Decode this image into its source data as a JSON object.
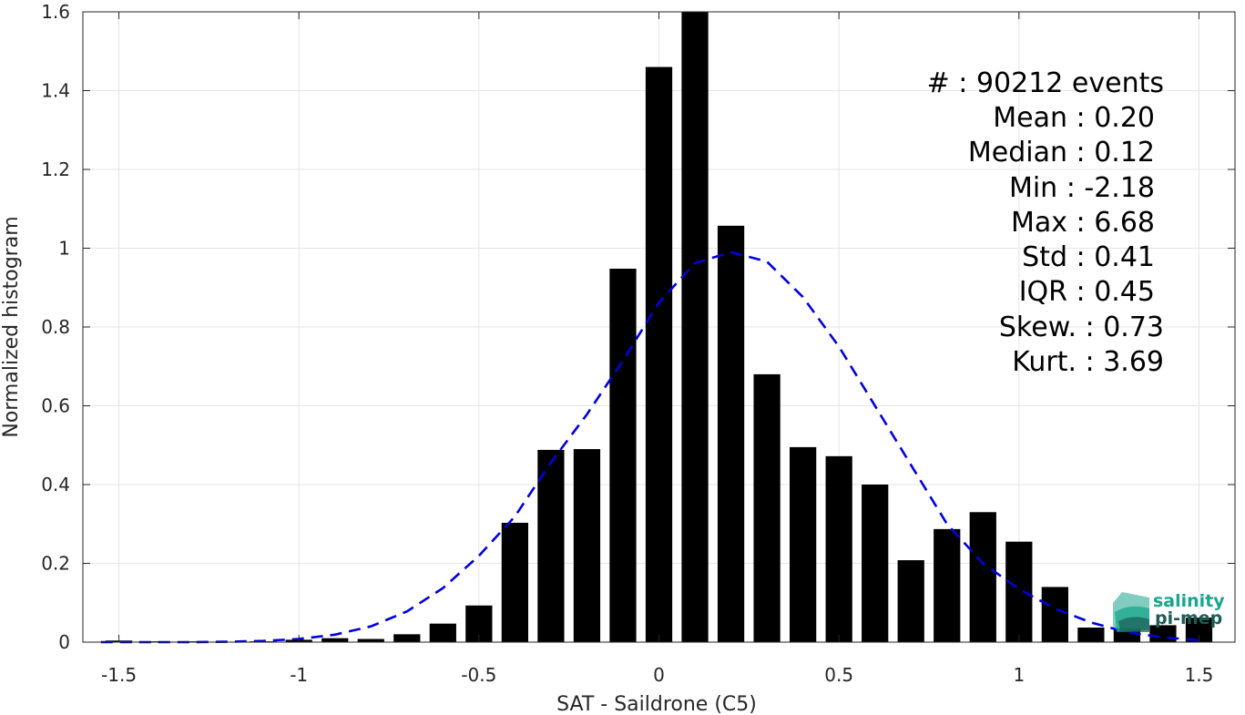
{
  "chart_data": {
    "type": "bar",
    "xlabel": "SAT - Saildrone (C5)",
    "ylabel": "Normalized histogram",
    "xlim": [
      -1.6,
      1.6
    ],
    "ylim": [
      0,
      1.6
    ],
    "x_ticks": [
      -1.5,
      -1,
      -0.5,
      0,
      0.5,
      1,
      1.5
    ],
    "x_tick_labels": [
      "-1.5",
      "-1",
      "-0.5",
      "0",
      "0.5",
      "1",
      "1.5"
    ],
    "y_ticks": [
      0,
      0.2,
      0.4,
      0.6,
      0.8,
      1,
      1.2,
      1.4,
      1.6
    ],
    "y_tick_labels": [
      "0",
      "0.2",
      "0.4",
      "0.6",
      "0.8",
      "1",
      "1.2",
      "1.4",
      "1.6"
    ],
    "grid": true,
    "bar_color": "#000000",
    "bin_width": 0.1,
    "bars": {
      "x": [
        -1.5,
        -1.4,
        -1.3,
        -1.2,
        -1.1,
        -1.0,
        -0.9,
        -0.8,
        -0.7,
        -0.6,
        -0.5,
        -0.4,
        -0.3,
        -0.2,
        -0.1,
        0.0,
        0.1,
        0.2,
        0.3,
        0.4,
        0.5,
        0.6,
        0.7,
        0.8,
        0.9,
        1.0,
        1.1,
        1.2,
        1.3,
        1.4,
        1.5
      ],
      "values": [
        0.004,
        0.002,
        0.002,
        0.001,
        0.002,
        0.006,
        0.01,
        0.008,
        0.02,
        0.047,
        0.093,
        0.303,
        0.488,
        0.49,
        0.948,
        1.46,
        1.6,
        1.057,
        0.68,
        0.495,
        0.472,
        0.4,
        0.208,
        0.287,
        0.33,
        0.255,
        0.14,
        0.037,
        0.035,
        0.043,
        0.062
      ]
    },
    "fit_curve": {
      "style": "dashed",
      "color": "#0000dd",
      "x": [
        -1.55,
        -1.5,
        -1.4,
        -1.3,
        -1.2,
        -1.1,
        -1.0,
        -0.9,
        -0.8,
        -0.7,
        -0.6,
        -0.5,
        -0.4,
        -0.3,
        -0.2,
        -0.1,
        0.0,
        0.1,
        0.2,
        0.3,
        0.4,
        0.5,
        0.6,
        0.7,
        0.8,
        0.9,
        1.0,
        1.1,
        1.2,
        1.3,
        1.4,
        1.5
      ],
      "y": [
        0.0,
        0.0,
        0.0,
        0.0,
        0.001,
        0.003,
        0.008,
        0.019,
        0.04,
        0.078,
        0.137,
        0.219,
        0.319,
        0.456,
        0.578,
        0.715,
        0.862,
        0.962,
        0.99,
        0.966,
        0.876,
        0.75,
        0.6,
        0.45,
        0.3,
        0.2,
        0.135,
        0.085,
        0.05,
        0.025,
        0.012,
        0.005
      ]
    },
    "stats_lines": [
      "#  : 90212 events",
      "Mean : 0.20",
      "Median : 0.12",
      "Min : -2.18",
      "Max : 6.68",
      "Std : 0.41",
      "IQR : 0.45",
      "Skew. : 0.73",
      "Kurt. : 3.69"
    ]
  },
  "logo": {
    "line1": "salinity",
    "line2": "pi-mep",
    "color1": "#1aa58c",
    "color2": "#1b5c55"
  }
}
